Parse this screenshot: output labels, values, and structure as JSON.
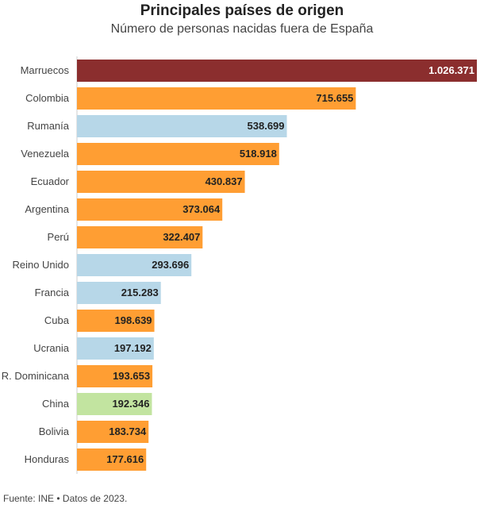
{
  "title": "Principales países de origen",
  "subtitle": "Número de personas nacidas fuera de España",
  "footer": "Fuente: INE • Datos de 2023.",
  "chart_data": {
    "type": "bar",
    "orientation": "horizontal",
    "title": "Principales países de origen",
    "subtitle": "Número de personas nacidas fuera de España",
    "xlabel": "",
    "ylabel": "",
    "xlim": [
      0,
      1026371
    ],
    "grid": false,
    "data_labels": "inside-end",
    "categories": [
      "Marruecos",
      "Colombia",
      "Rumanía",
      "Venezuela",
      "Ecuador",
      "Argentina",
      "Perú",
      "Reino Unido",
      "Francia",
      "Cuba",
      "Ucrania",
      "R. Dominicana",
      "China",
      "Bolivia",
      "Honduras"
    ],
    "values": [
      1026371,
      715655,
      538699,
      518918,
      430837,
      373064,
      322407,
      293696,
      215283,
      198639,
      197192,
      193653,
      192346,
      183734,
      177616
    ],
    "value_labels": [
      "1.026.371",
      "715.655",
      "538.699",
      "518.918",
      "430.837",
      "373.064",
      "322.407",
      "293.696",
      "215.283",
      "198.639",
      "197.192",
      "193.653",
      "192.346",
      "183.734",
      "177.616"
    ],
    "colors": [
      "#8b2e2e",
      "#ff9e33",
      "#b7d7e8",
      "#ff9e33",
      "#ff9e33",
      "#ff9e33",
      "#ff9e33",
      "#b7d7e8",
      "#b7d7e8",
      "#ff9e33",
      "#b7d7e8",
      "#ff9e33",
      "#c2e4a0",
      "#ff9e33",
      "#ff9e33"
    ],
    "label_colors": [
      "#ffffff",
      "#222222",
      "#222222",
      "#222222",
      "#222222",
      "#222222",
      "#222222",
      "#222222",
      "#222222",
      "#222222",
      "#222222",
      "#222222",
      "#222222",
      "#222222",
      "#222222"
    ]
  }
}
